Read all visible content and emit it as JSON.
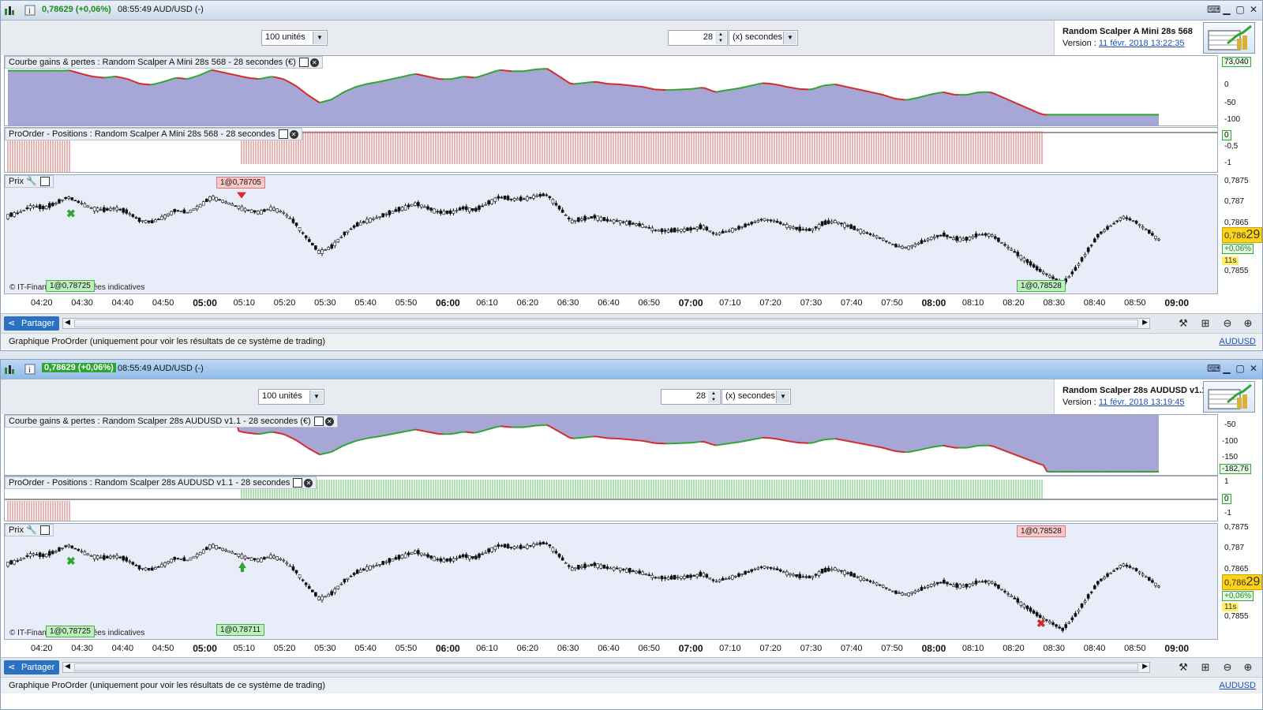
{
  "windows": [
    {
      "title_price": "0,78629 (+0,06%)",
      "title_time": "08:55:49 AUD/USD (-)",
      "qty": "100 unités",
      "interval_value": "28",
      "interval_unit": "(x) secondes",
      "system_name": "Random Scalper A Mini 28s 568",
      "version_label": "Version :",
      "version_date": "11 févr. 2018 13:22:35",
      "equity_title": "Courbe gains & pertes : Random Scalper A Mini 28s 568 - 28 secondes (€)",
      "equity_axis": [
        "73,040",
        "0",
        "-50",
        "-100"
      ],
      "positions_title": "ProOrder - Positions : Random Scalper A Mini 28s 568 - 28 secondes",
      "positions_axis": [
        "0",
        "-0,5",
        "-1"
      ],
      "price_title": "Prix",
      "price_axis": [
        "0,7875",
        "0,787",
        "0,7865",
        "0,7855"
      ],
      "label_top": "1@0,78705",
      "label_bottom_left": "1@0,78725",
      "label_bottom_right": "1@0,78528",
      "copyright": "© IT-Finance.com  Données indicatives",
      "price_badge_main": "0,786",
      "price_badge_tail": "29",
      "change_badge": "+0,06%",
      "time_badge": "11s",
      "share": "Partager",
      "status": "Graphique ProOrder (uniquement pour voir les résultats de ce système de trading)",
      "symbol": "AUDUSD"
    },
    {
      "title_price": "0,78629 (+0,06%)",
      "title_time": "08:55:49 AUD/USD (-)",
      "qty": "100 unités",
      "interval_value": "28",
      "interval_unit": "(x) secondes",
      "system_name": "Random Scalper 28s AUDUSD v1.1",
      "version_label": "Version :",
      "version_date": "11 févr. 2018 13:19:45",
      "equity_title": "Courbe gains & pertes : Random Scalper 28s AUDUSD v1.1 - 28 secondes (€)",
      "equity_axis": [
        "-50",
        "-100",
        "-150",
        "-182,76"
      ],
      "positions_title": "ProOrder - Positions : Random Scalper 28s AUDUSD v1.1 - 28 secondes",
      "positions_axis": [
        "1",
        "0",
        "-1"
      ],
      "price_title": "Prix",
      "price_axis": [
        "0,7875",
        "0,787",
        "0,7865",
        "0,7855"
      ],
      "label_top": "1@0,78528",
      "label_bottom_left": "1@0,78725",
      "label_bottom_right": "1@0,78711",
      "copyright": "© IT-Finance.com  Données indicatives",
      "price_badge_main": "0,786",
      "price_badge_tail": "29",
      "change_badge": "+0,06%",
      "time_badge": "11s",
      "share": "Partager",
      "status": "Graphique ProOrder (uniquement pour voir les résultats de ce système de trading)",
      "symbol": "AUDUSD"
    }
  ],
  "time_axis": [
    "04:20",
    "04:30",
    "04:40",
    "04:50",
    "05:00",
    "05:10",
    "05:20",
    "05:30",
    "05:40",
    "05:50",
    "06:00",
    "06:10",
    "06:20",
    "06:30",
    "06:40",
    "06:50",
    "07:00",
    "07:10",
    "07:20",
    "07:30",
    "07:40",
    "07:50",
    "08:00",
    "08:10",
    "08:20",
    "08:30",
    "08:40",
    "08:50",
    "09:00"
  ],
  "bold_times": [
    "05:00",
    "06:00",
    "07:00",
    "08:00",
    "09:00"
  ],
  "colors": {
    "equity_fill": "#a6a7d6",
    "up": "#2fa52f",
    "down": "#d42a2a",
    "short_bars": "#d16b6b",
    "long_bars": "#5cbf5c",
    "accent": "#2b73c2"
  },
  "chart_data": {
    "type": "line",
    "title": "Prix",
    "price_path": [
      0.78682,
      0.7869,
      0.78705,
      0.787,
      0.7871,
      0.78725,
      0.78712,
      0.787,
      0.78695,
      0.787,
      0.7869,
      0.78672,
      0.78668,
      0.7868,
      0.78695,
      0.7869,
      0.78705,
      0.78725,
      0.78715,
      0.78705,
      0.78695,
      0.7869,
      0.787,
      0.7869,
      0.78665,
      0.7863,
      0.786,
      0.78612,
      0.7864,
      0.7866,
      0.78672,
      0.7868,
      0.7869,
      0.787,
      0.7871,
      0.787,
      0.7869,
      0.7869,
      0.787,
      0.78695,
      0.7871,
      0.78725,
      0.7872,
      0.7872,
      0.78727,
      0.7873,
      0.787,
      0.7867,
      0.78675,
      0.7868,
      0.78672,
      0.7867,
      0.78665,
      0.7866,
      0.7865,
      0.78648,
      0.7865,
      0.78652,
      0.78658,
      0.7864,
      0.78648,
      0.78655,
      0.78665,
      0.78675,
      0.7867,
      0.7866,
      0.78652,
      0.7865,
      0.78665,
      0.7867,
      0.7866,
      0.7865,
      0.7864,
      0.7863,
      0.78615,
      0.7861,
      0.7862,
      0.78632,
      0.7864,
      0.7863,
      0.7863,
      0.7864,
      0.7864,
      0.7862,
      0.786,
      0.7858,
      0.7856,
      0.78545,
      0.78528,
      0.7856,
      0.786,
      0.7864,
      0.7866,
      0.7868,
      0.7867,
      0.7865,
      0.78629
    ],
    "ylim": [
      0.78525,
      0.7876
    ]
  }
}
